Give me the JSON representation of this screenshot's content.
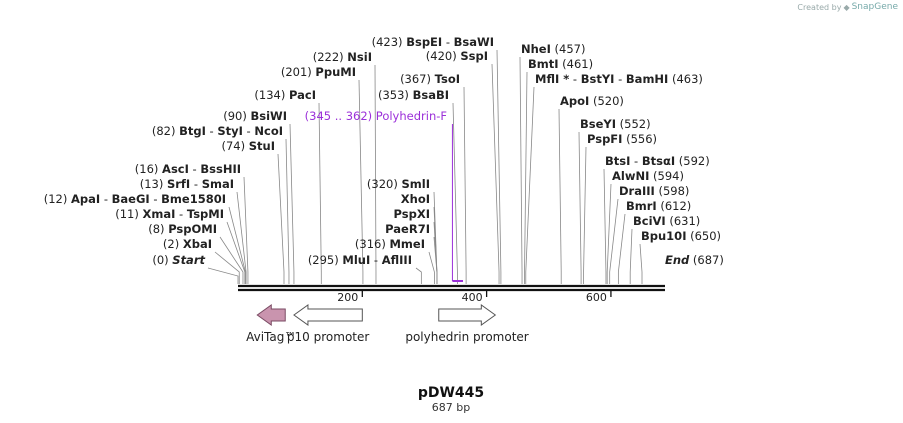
{
  "credit": {
    "prefix": "Created by",
    "brand": "SnapGene"
  },
  "map": {
    "name": "pDW445",
    "length_label": "687 bp",
    "length": 687,
    "ruler": [
      {
        "pos": 200,
        "label": "200"
      },
      {
        "pos": 400,
        "label": "400"
      },
      {
        "pos": 600,
        "label": "600"
      }
    ],
    "start": {
      "pos": 0,
      "num": "(0)",
      "name": "Start"
    },
    "end": {
      "pos": 687,
      "num": "(687)",
      "name": "End"
    },
    "sites_left": [
      {
        "pos": 2,
        "num": "(2)",
        "names": [
          "XbaI"
        ]
      },
      {
        "pos": 8,
        "num": "(8)",
        "names": [
          "PspOMI"
        ]
      },
      {
        "pos": 11,
        "num": "(11)",
        "names": [
          "XmaI",
          "TspMI"
        ]
      },
      {
        "pos": 12,
        "num": "(12)",
        "names": [
          "ApaI",
          "BaeGI",
          "Bme1580I"
        ]
      },
      {
        "pos": 13,
        "num": "(13)",
        "names": [
          "SrfI",
          "SmaI"
        ]
      },
      {
        "pos": 16,
        "num": "(16)",
        "names": [
          "AscI",
          "BssHII"
        ]
      },
      {
        "pos": 74,
        "num": "(74)",
        "names": [
          "StuI"
        ]
      },
      {
        "pos": 82,
        "num": "(82)",
        "names": [
          "BtgI",
          "StyI",
          "NcoI"
        ]
      },
      {
        "pos": 90,
        "num": "(90)",
        "names": [
          "BsiWI"
        ]
      },
      {
        "pos": 134,
        "num": "(134)",
        "names": [
          "PacI"
        ]
      },
      {
        "pos": 201,
        "num": "(201)",
        "names": [
          "PpuMI"
        ]
      },
      {
        "pos": 222,
        "num": "(222)",
        "names": [
          "NsiI"
        ]
      },
      {
        "pos": 423,
        "num": "(423)",
        "names": [
          "BspEI",
          "BsaWI"
        ]
      }
    ],
    "sites_center": [
      {
        "pos": 295,
        "num": "(295)",
        "names": [
          "MluI",
          "AflIII"
        ]
      },
      {
        "pos": 316,
        "num": "(316)",
        "names": [
          "MmeI"
        ]
      },
      {
        "pos": 320,
        "num": "(320)",
        "names": [
          "SmlI"
        ]
      },
      {
        "pos": 320,
        "num": "",
        "names": [
          "XhoI"
        ]
      },
      {
        "pos": 320,
        "num": "",
        "names": [
          "PspXI"
        ]
      },
      {
        "pos": 320,
        "num": "",
        "names": [
          "PaeR7I"
        ]
      },
      {
        "pos": 353,
        "num": "(353)",
        "names": [
          "BsaBI"
        ]
      },
      {
        "pos": 367,
        "num": "(367)",
        "names": [
          "TsoI"
        ]
      },
      {
        "pos": 420,
        "num": "(420)",
        "names": [
          "SspI"
        ]
      }
    ],
    "sites_right": [
      {
        "pos": 457,
        "num": "(457)",
        "names": [
          "NheI"
        ]
      },
      {
        "pos": 461,
        "num": "(461)",
        "names": [
          "BmtI"
        ]
      },
      {
        "pos": 463,
        "num": "(463)",
        "names": [
          "MflI *",
          "BstYI",
          "BamHI"
        ]
      },
      {
        "pos": 520,
        "num": "(520)",
        "names": [
          "ApoI"
        ]
      },
      {
        "pos": 552,
        "num": "(552)",
        "names": [
          "BseYI"
        ]
      },
      {
        "pos": 556,
        "num": "(556)",
        "names": [
          "PspFI"
        ]
      },
      {
        "pos": 592,
        "num": "(592)",
        "names": [
          "BtsI",
          "BtsαI"
        ]
      },
      {
        "pos": 594,
        "num": "(594)",
        "names": [
          "AlwNI"
        ]
      },
      {
        "pos": 598,
        "num": "(598)",
        "names": [
          "DraIII"
        ]
      },
      {
        "pos": 612,
        "num": "(612)",
        "names": [
          "BmrI"
        ]
      },
      {
        "pos": 631,
        "num": "(631)",
        "names": [
          "BciVI"
        ]
      },
      {
        "pos": 650,
        "num": "(650)",
        "names": [
          "Bpu10I"
        ]
      }
    ],
    "primer": {
      "start": 345,
      "end": 362,
      "range": "(345 .. 362)",
      "name": "Polyhedrin-F",
      "color": "#9b30d9"
    },
    "features": [
      {
        "name": "AviTag™",
        "start": 31,
        "end": 76,
        "direction": "left",
        "fill": "#c994ae",
        "stroke": "#7a4a63"
      },
      {
        "name": "p10 promoter",
        "start": 90,
        "end": 200,
        "direction": "left",
        "fill": "#ffffff",
        "stroke": "#555555"
      },
      {
        "name": "polyhedrin promoter",
        "start": 323,
        "end": 414,
        "direction": "right",
        "fill": "#ffffff",
        "stroke": "#555555"
      }
    ]
  }
}
